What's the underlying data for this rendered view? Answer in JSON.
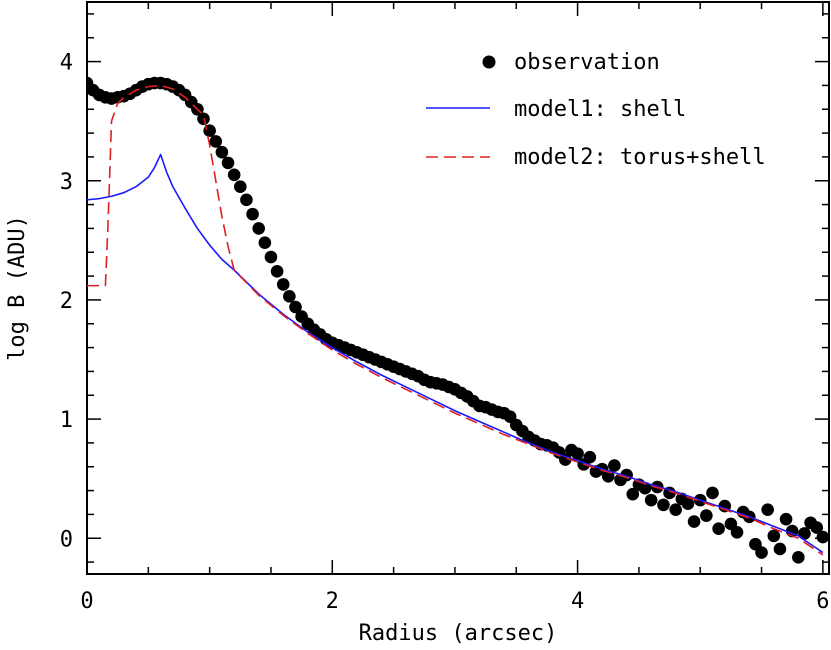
{
  "chart_data": {
    "type": "line",
    "title": "",
    "xlabel": "Radius (arcsec)",
    "ylabel": "log B (ADU)",
    "xlim": [
      0,
      6.05
    ],
    "ylim": [
      -0.3,
      4.5
    ],
    "x_ticks": [
      0,
      2,
      4,
      6
    ],
    "y_ticks": [
      0,
      1,
      2,
      3,
      4
    ],
    "x_tick_labels": [
      "0",
      "2",
      "4",
      "6"
    ],
    "y_tick_labels": [
      "0",
      "1",
      "2",
      "3",
      "4"
    ],
    "legend_position": "top-right",
    "colors": {
      "observation": "#000000",
      "model1": "#1a1aff",
      "model2": "#e02020"
    },
    "series": [
      {
        "name": "observation",
        "style": "points",
        "x": [
          0.0,
          0.05,
          0.1,
          0.15,
          0.2,
          0.25,
          0.3,
          0.35,
          0.4,
          0.45,
          0.5,
          0.55,
          0.6,
          0.65,
          0.7,
          0.75,
          0.8,
          0.85,
          0.9,
          0.95,
          1.0,
          1.05,
          1.1,
          1.15,
          1.2,
          1.25,
          1.3,
          1.35,
          1.4,
          1.45,
          1.5,
          1.55,
          1.6,
          1.65,
          1.7,
          1.75,
          1.8,
          1.85,
          1.9,
          1.95,
          2.0,
          2.05,
          2.1,
          2.15,
          2.2,
          2.25,
          2.3,
          2.35,
          2.4,
          2.45,
          2.5,
          2.55,
          2.6,
          2.65,
          2.7,
          2.75,
          2.8,
          2.85,
          2.9,
          2.95,
          3.0,
          3.05,
          3.1,
          3.15,
          3.2,
          3.25,
          3.3,
          3.35,
          3.4,
          3.45,
          3.5,
          3.55,
          3.6,
          3.65,
          3.7,
          3.75,
          3.8,
          3.85,
          3.9,
          3.95,
          4.0,
          4.05,
          4.1,
          4.15,
          4.2,
          4.25,
          4.3,
          4.35,
          4.4,
          4.45,
          4.5,
          4.55,
          4.6,
          4.65,
          4.7,
          4.75,
          4.8,
          4.85,
          4.9,
          4.95,
          5.0,
          5.05,
          5.1,
          5.15,
          5.2,
          5.25,
          5.3,
          5.35,
          5.4,
          5.45,
          5.5,
          5.55,
          5.6,
          5.65,
          5.7,
          5.75,
          5.8,
          5.85,
          5.9,
          5.95,
          6.0
        ],
        "y": [
          3.82,
          3.76,
          3.72,
          3.7,
          3.69,
          3.7,
          3.71,
          3.73,
          3.76,
          3.79,
          3.81,
          3.82,
          3.82,
          3.81,
          3.79,
          3.76,
          3.72,
          3.66,
          3.6,
          3.52,
          3.42,
          3.33,
          3.24,
          3.15,
          3.05,
          2.95,
          2.84,
          2.72,
          2.6,
          2.48,
          2.36,
          2.24,
          2.13,
          2.03,
          1.94,
          1.86,
          1.8,
          1.75,
          1.71,
          1.67,
          1.64,
          1.62,
          1.6,
          1.58,
          1.56,
          1.54,
          1.52,
          1.5,
          1.48,
          1.46,
          1.44,
          1.42,
          1.4,
          1.38,
          1.36,
          1.33,
          1.31,
          1.3,
          1.29,
          1.27,
          1.25,
          1.22,
          1.19,
          1.15,
          1.11,
          1.1,
          1.08,
          1.06,
          1.05,
          1.02,
          0.95,
          0.9,
          0.85,
          0.82,
          0.79,
          0.78,
          0.76,
          0.72,
          0.66,
          0.74,
          0.71,
          0.62,
          0.68,
          0.56,
          0.58,
          0.52,
          0.61,
          0.49,
          0.53,
          0.37,
          0.45,
          0.42,
          0.32,
          0.43,
          0.28,
          0.38,
          0.24,
          0.33,
          0.29,
          0.14,
          0.32,
          0.19,
          0.38,
          0.08,
          0.27,
          0.12,
          0.05,
          0.22,
          0.18,
          -0.05,
          -0.12,
          0.24,
          0.02,
          -0.09,
          0.16,
          0.06,
          -0.16,
          0.04,
          0.13,
          0.09,
          0.01
        ]
      },
      {
        "name": "model1: shell",
        "style": "solid",
        "x": [
          0.0,
          0.1,
          0.2,
          0.3,
          0.4,
          0.5,
          0.55,
          0.6,
          0.65,
          0.7,
          0.8,
          0.9,
          1.0,
          1.1,
          1.2,
          1.4,
          1.6,
          1.8,
          2.0,
          2.2,
          2.4,
          2.6,
          2.8,
          3.0,
          3.2,
          3.4,
          3.6,
          3.8,
          4.0,
          4.2,
          4.4,
          4.6,
          4.8,
          5.0,
          5.2,
          5.4,
          5.6,
          5.8,
          6.0
        ],
        "y": [
          2.84,
          2.85,
          2.87,
          2.9,
          2.95,
          3.03,
          3.11,
          3.22,
          3.07,
          2.95,
          2.77,
          2.6,
          2.46,
          2.34,
          2.25,
          2.05,
          1.88,
          1.73,
          1.6,
          1.48,
          1.37,
          1.27,
          1.17,
          1.07,
          0.98,
          0.89,
          0.8,
          0.72,
          0.65,
          0.58,
          0.52,
          0.45,
          0.39,
          0.32,
          0.25,
          0.18,
          0.1,
          0.02,
          -0.12
        ]
      },
      {
        "name": "model2: torus+shell",
        "style": "dashed",
        "x": [
          0.0,
          0.08,
          0.15,
          0.17,
          0.2,
          0.25,
          0.3,
          0.35,
          0.4,
          0.5,
          0.6,
          0.7,
          0.8,
          0.9,
          0.95,
          1.0,
          1.05,
          1.1,
          1.15,
          1.2,
          1.4,
          1.6,
          1.8,
          2.0,
          2.2,
          2.4,
          2.6,
          2.8,
          3.0,
          3.2,
          3.4,
          3.6,
          3.8,
          4.0,
          4.2,
          4.4,
          4.6,
          4.8,
          5.0,
          5.2,
          5.4,
          5.6,
          5.8,
          6.0
        ],
        "y": [
          2.12,
          2.12,
          2.12,
          2.6,
          3.5,
          3.65,
          3.7,
          3.73,
          3.76,
          3.79,
          3.8,
          3.77,
          3.7,
          3.6,
          3.55,
          3.3,
          3.0,
          2.7,
          2.45,
          2.25,
          2.04,
          1.87,
          1.72,
          1.58,
          1.46,
          1.35,
          1.25,
          1.15,
          1.05,
          0.96,
          0.87,
          0.79,
          0.71,
          0.64,
          0.57,
          0.51,
          0.44,
          0.38,
          0.31,
          0.24,
          0.17,
          0.08,
          0.0,
          -0.14
        ]
      }
    ],
    "legend": [
      {
        "label": "observation",
        "marker": "point"
      },
      {
        "label": "model1: shell",
        "marker": "solid-line"
      },
      {
        "label": "model2: torus+shell",
        "marker": "dashed-line"
      }
    ]
  }
}
